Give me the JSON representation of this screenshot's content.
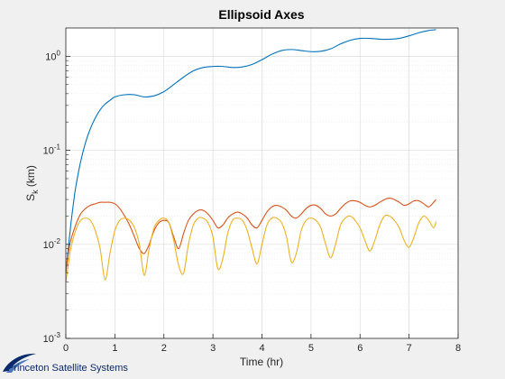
{
  "figure": {
    "background": "#f0f0f0",
    "axes_background": "#ffffff"
  },
  "logo": {
    "text": "Princeton Satellite Systems",
    "icon": "swoosh-logo-icon",
    "color": "#0b2a6b"
  },
  "chart_data": {
    "type": "line",
    "title": "Ellipsoid Axes",
    "xlabel": "Time (hr)",
    "ylabel": {
      "base": "S",
      "subscript": "k",
      "unit": " (km)"
    },
    "xlim": [
      0,
      8
    ],
    "ylim": [
      0.001,
      2
    ],
    "yscale": "log",
    "grid": true,
    "legend": "none",
    "x_ticks": [
      {
        "value": 0,
        "label": "0"
      },
      {
        "value": 1,
        "label": "1"
      },
      {
        "value": 2,
        "label": "2"
      },
      {
        "value": 3,
        "label": "3"
      },
      {
        "value": 4,
        "label": "4"
      },
      {
        "value": 5,
        "label": "5"
      },
      {
        "value": 6,
        "label": "6"
      },
      {
        "value": 7,
        "label": "7"
      },
      {
        "value": 8,
        "label": "8"
      }
    ],
    "y_ticks": [
      {
        "value": 0.001,
        "base": "10",
        "exp": "-3"
      },
      {
        "value": 0.01,
        "base": "10",
        "exp": "-2"
      },
      {
        "value": 0.1,
        "base": "10",
        "exp": "-1"
      },
      {
        "value": 1,
        "base": "10",
        "exp": "0"
      }
    ],
    "series": [
      {
        "color": "#0072bd",
        "x": [
          0,
          0.05,
          0.1,
          0.15,
          0.2,
          0.3,
          0.4,
          0.5,
          0.6,
          0.7,
          0.8,
          0.9,
          1.0,
          1.2,
          1.4,
          1.6,
          1.8,
          2.0,
          2.2,
          2.4,
          2.6,
          2.8,
          3.0,
          3.2,
          3.4,
          3.6,
          3.8,
          4.0,
          4.2,
          4.4,
          4.6,
          4.8,
          5.0,
          5.2,
          5.4,
          5.6,
          5.8,
          6.0,
          6.2,
          6.4,
          6.6,
          6.8,
          7.0,
          7.2,
          7.4,
          7.55
        ],
        "y": [
          0.005,
          0.009,
          0.016,
          0.026,
          0.04,
          0.075,
          0.12,
          0.17,
          0.22,
          0.27,
          0.31,
          0.34,
          0.37,
          0.39,
          0.39,
          0.37,
          0.38,
          0.42,
          0.5,
          0.6,
          0.7,
          0.76,
          0.78,
          0.78,
          0.76,
          0.77,
          0.82,
          0.92,
          1.05,
          1.15,
          1.18,
          1.15,
          1.12,
          1.13,
          1.2,
          1.35,
          1.48,
          1.55,
          1.55,
          1.52,
          1.52,
          1.55,
          1.65,
          1.78,
          1.88,
          1.92
        ]
      },
      {
        "color": "#d95319",
        "x": [
          0,
          0.05,
          0.1,
          0.2,
          0.3,
          0.4,
          0.5,
          0.6,
          0.7,
          0.8,
          0.9,
          1.0,
          1.1,
          1.2,
          1.3,
          1.4,
          1.5,
          1.6,
          1.7,
          1.8,
          1.9,
          2.0,
          2.1,
          2.2,
          2.3,
          2.4,
          2.5,
          2.6,
          2.7,
          2.8,
          2.9,
          3.0,
          3.1,
          3.2,
          3.3,
          3.4,
          3.5,
          3.6,
          3.7,
          3.8,
          3.9,
          4.0,
          4.1,
          4.2,
          4.3,
          4.4,
          4.5,
          4.6,
          4.7,
          4.8,
          4.9,
          5.0,
          5.1,
          5.2,
          5.3,
          5.4,
          5.5,
          5.6,
          5.7,
          5.8,
          5.9,
          6.0,
          6.1,
          6.2,
          6.3,
          6.4,
          6.5,
          6.6,
          6.7,
          6.8,
          6.9,
          7.0,
          7.1,
          7.2,
          7.3,
          7.4,
          7.5,
          7.55
        ],
        "y": [
          0.005,
          0.008,
          0.011,
          0.016,
          0.021,
          0.024,
          0.026,
          0.027,
          0.028,
          0.028,
          0.028,
          0.027,
          0.024,
          0.02,
          0.016,
          0.012,
          0.009,
          0.008,
          0.01,
          0.014,
          0.017,
          0.018,
          0.017,
          0.012,
          0.009,
          0.013,
          0.018,
          0.021,
          0.023,
          0.023,
          0.021,
          0.018,
          0.015,
          0.016,
          0.019,
          0.021,
          0.022,
          0.021,
          0.019,
          0.016,
          0.015,
          0.018,
          0.022,
          0.025,
          0.026,
          0.025,
          0.023,
          0.02,
          0.019,
          0.021,
          0.024,
          0.026,
          0.026,
          0.024,
          0.021,
          0.02,
          0.021,
          0.024,
          0.027,
          0.029,
          0.029,
          0.028,
          0.026,
          0.025,
          0.026,
          0.028,
          0.03,
          0.031,
          0.03,
          0.028,
          0.026,
          0.027,
          0.029,
          0.029,
          0.027,
          0.025,
          0.028,
          0.03
        ]
      },
      {
        "color": "#edb120",
        "x": [
          0,
          0.05,
          0.1,
          0.2,
          0.3,
          0.4,
          0.5,
          0.6,
          0.7,
          0.8,
          0.9,
          1.0,
          1.1,
          1.2,
          1.3,
          1.4,
          1.5,
          1.6,
          1.7,
          1.8,
          1.9,
          2.0,
          2.1,
          2.2,
          2.3,
          2.4,
          2.5,
          2.6,
          2.7,
          2.8,
          2.9,
          3.0,
          3.1,
          3.2,
          3.3,
          3.4,
          3.5,
          3.6,
          3.7,
          3.8,
          3.9,
          4.0,
          4.1,
          4.2,
          4.3,
          4.4,
          4.5,
          4.6,
          4.7,
          4.8,
          4.9,
          5.0,
          5.1,
          5.2,
          5.3,
          5.4,
          5.5,
          5.6,
          5.7,
          5.8,
          5.9,
          6.0,
          6.1,
          6.2,
          6.3,
          6.4,
          6.5,
          6.6,
          6.7,
          6.8,
          6.9,
          7.0,
          7.1,
          7.2,
          7.3,
          7.4,
          7.5,
          7.55
        ],
        "y": [
          0.004,
          0.006,
          0.009,
          0.014,
          0.018,
          0.019,
          0.018,
          0.014,
          0.009,
          0.0042,
          0.008,
          0.014,
          0.018,
          0.019,
          0.018,
          0.015,
          0.01,
          0.0047,
          0.009,
          0.015,
          0.018,
          0.019,
          0.017,
          0.011,
          0.006,
          0.0049,
          0.01,
          0.016,
          0.019,
          0.019,
          0.017,
          0.012,
          0.0055,
          0.007,
          0.013,
          0.018,
          0.019,
          0.018,
          0.014,
          0.009,
          0.0062,
          0.01,
          0.016,
          0.019,
          0.019,
          0.017,
          0.012,
          0.0065,
          0.008,
          0.014,
          0.018,
          0.019,
          0.018,
          0.015,
          0.01,
          0.0072,
          0.01,
          0.016,
          0.019,
          0.02,
          0.018,
          0.015,
          0.011,
          0.0085,
          0.011,
          0.016,
          0.02,
          0.02,
          0.018,
          0.015,
          0.011,
          0.0093,
          0.012,
          0.017,
          0.02,
          0.018,
          0.015,
          0.0175
        ]
      }
    ]
  }
}
